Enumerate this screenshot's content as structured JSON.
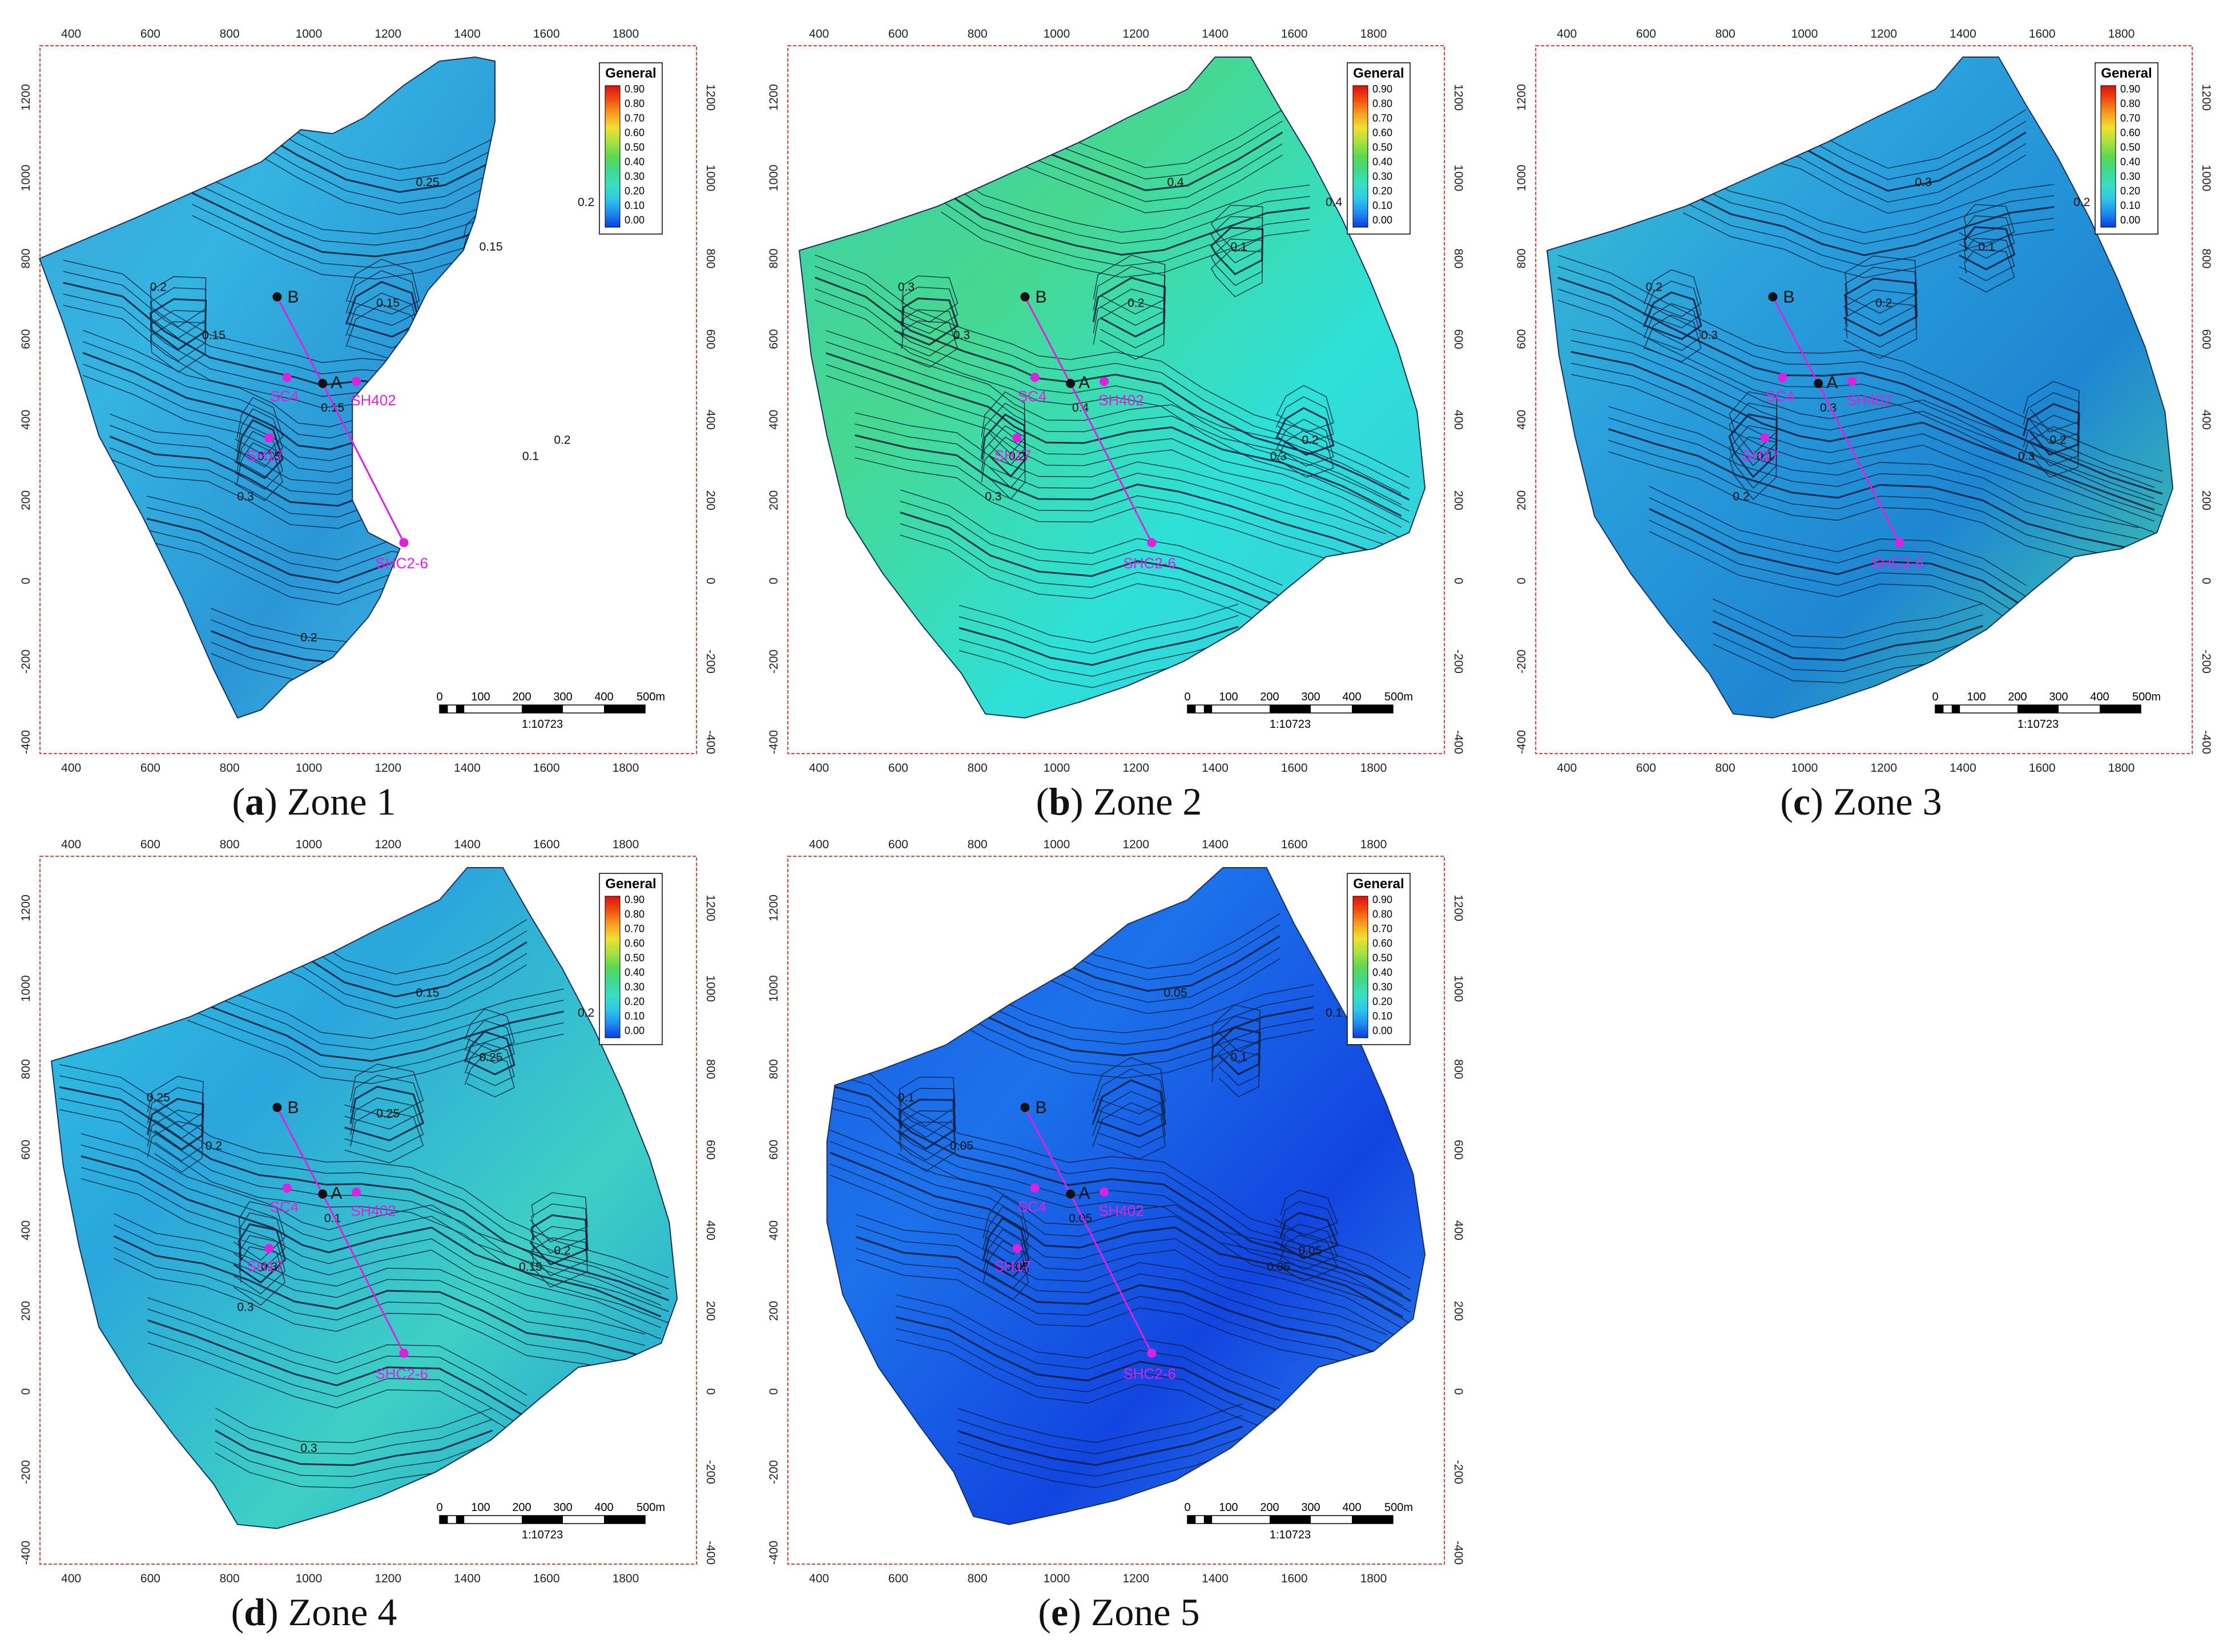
{
  "legend": {
    "title": "General",
    "ticks": [
      "0.90",
      "0.80",
      "0.70",
      "0.60",
      "0.50",
      "0.40",
      "0.30",
      "0.20",
      "0.10",
      "0.00"
    ],
    "colormap": [
      "#0a3de0",
      "#1e8cf0",
      "#2ec8e8",
      "#38e0c0",
      "#40d890",
      "#5cd84c",
      "#a8e040",
      "#f0e030",
      "#f8a020",
      "#f05010",
      "#e01010"
    ]
  },
  "axes": {
    "x_ticks": [
      "400",
      "600",
      "800",
      "1000",
      "1200",
      "1400",
      "1600",
      "1800"
    ],
    "y_ticks": [
      "1200",
      "1000",
      "800",
      "600",
      "400",
      "200",
      "0",
      "-200",
      "-400"
    ]
  },
  "scale_bar": {
    "labels": [
      "0",
      "100",
      "200",
      "300",
      "400",
      "500m"
    ],
    "ratio": "1:10723"
  },
  "wells": {
    "point_a": "A",
    "point_b": "B",
    "sc4": "SC4",
    "sh402": "SH402",
    "sh17": "SH17",
    "shc26": "SHC2-6"
  },
  "panels": [
    {
      "id": "a",
      "letter": "a",
      "caption": "Zone 1",
      "fill": [
        "#3aa6dc",
        "#34b4e0",
        "#2a96d6",
        "#44bfe4"
      ],
      "contour_labels": [
        "0.1",
        "0.15",
        "0.15",
        "0.2",
        "0.25",
        "0.2",
        "0.15",
        "0.15",
        "0.2",
        "0.3",
        "0.15",
        "0.2"
      ]
    },
    {
      "id": "b",
      "letter": "b",
      "caption": "Zone 2",
      "fill": [
        "#3ccfa8",
        "#46d890",
        "#2ee0d8",
        "#36c8dc"
      ],
      "contour_labels": [
        "0.3",
        "0.4",
        "0.3",
        "0.4",
        "0.4",
        "0.3",
        "0.2",
        "0.1",
        "0.2",
        "0.3",
        "0.2"
      ]
    },
    {
      "id": "c",
      "letter": "c",
      "caption": "Zone 3",
      "fill": [
        "#3ac8d0",
        "#2aa0dc",
        "#1e86d2",
        "#46d4a4"
      ],
      "contour_labels": [
        "0.3",
        "0.3",
        "0.3",
        "0.2",
        "0.3",
        "0.2",
        "0.1",
        "0.1",
        "0.2",
        "0.2",
        "0.2"
      ]
    },
    {
      "id": "d",
      "letter": "d",
      "caption": "Zone 4",
      "fill": [
        "#30c6e2",
        "#2aa6dc",
        "#3ed0c4",
        "#1f9ad6"
      ],
      "contour_labels": [
        "0.15",
        "0.1",
        "0.2",
        "0.2",
        "0.15",
        "0.25",
        "0.3",
        "0.25",
        "0.2",
        "0.3",
        "0.25",
        "0.3"
      ]
    },
    {
      "id": "e",
      "letter": "e",
      "caption": "Zone 5",
      "fill": [
        "#1a5ee6",
        "#1c72ea",
        "#1245e0",
        "#2a86ec"
      ],
      "contour_labels": [
        "0.05",
        "0.05",
        "0.05",
        "0.1",
        "0.05",
        "0.1",
        "0.05",
        "0.1",
        "0.05"
      ]
    }
  ]
}
